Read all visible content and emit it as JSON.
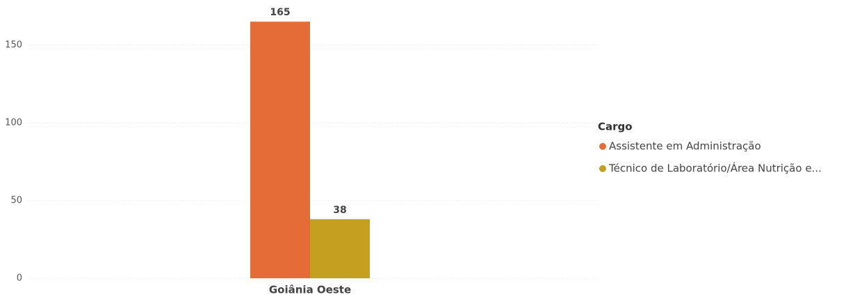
{
  "chart_data": {
    "type": "bar",
    "categories": [
      "Goiânia Oeste"
    ],
    "series": [
      {
        "name": "Assistente em Administração",
        "color": "#E66C37",
        "values": [
          165
        ]
      },
      {
        "name": "Técnico de Laboratório/Área Nutrição e...",
        "color": "#C5A020",
        "values": [
          38
        ]
      }
    ],
    "ylim": [
      0,
      170
    ],
    "yticks": [
      0,
      50,
      100,
      150
    ],
    "grid": true,
    "legend_title": "Cargo",
    "legend": "right"
  }
}
